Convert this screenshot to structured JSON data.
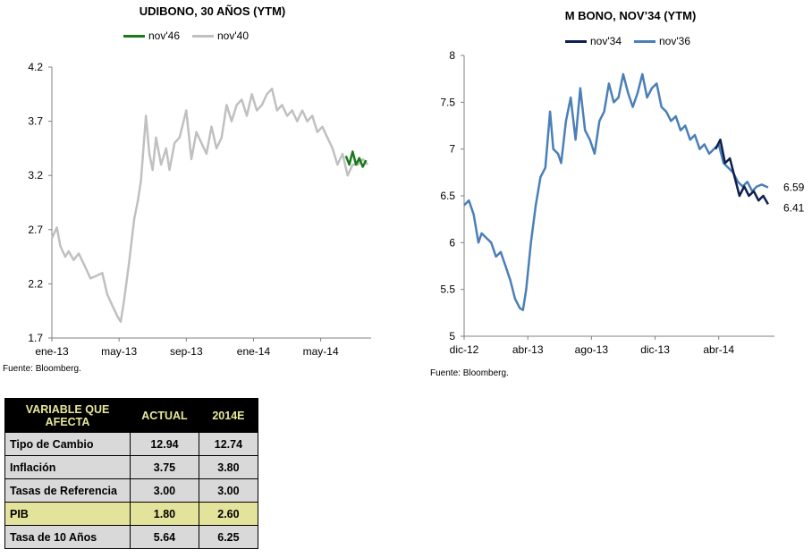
{
  "charts": {
    "left": {
      "title": "UDIBONO, 30 AÑOS (YTM)",
      "source": "Fuente: Bloomberg."
    },
    "right": {
      "title": "M BONO, NOV’34 (YTM)",
      "source": "Fuente: Bloomberg."
    }
  },
  "chart_data": [
    {
      "type": "line",
      "title": "UDIBONO, 30 AÑOS (YTM)",
      "xlabel": "",
      "ylabel": "",
      "ylim": [
        1.7,
        4.2
      ],
      "yticks": [
        1.7,
        2.2,
        2.7,
        3.2,
        3.7,
        4.2
      ],
      "ytick_labels": [
        "1.7",
        "2.2",
        "2.7",
        "3.2",
        "3.7",
        "4.2"
      ],
      "xlim": [
        0,
        19
      ],
      "xticks": [
        0,
        4,
        8,
        12,
        16
      ],
      "xtick_labels": [
        "ene-13",
        "may-13",
        "sep-13",
        "ene-14",
        "may-14"
      ],
      "grid": false,
      "legend_position": "top-center",
      "series": [
        {
          "name": "nov'40",
          "color": "#c0c0c0",
          "x": [
            0,
            0.3,
            0.5,
            0.8,
            1.0,
            1.3,
            1.6,
            2.0,
            2.3,
            2.6,
            3.0,
            3.3,
            3.6,
            3.9,
            4.1,
            4.3,
            4.6,
            4.9,
            5.1,
            5.3,
            5.6,
            5.8,
            6.0,
            6.2,
            6.5,
            6.8,
            7.0,
            7.3,
            7.6,
            8.0,
            8.3,
            8.6,
            8.9,
            9.2,
            9.5,
            9.8,
            10.1,
            10.4,
            10.7,
            11.0,
            11.3,
            11.6,
            11.9,
            12.2,
            12.5,
            12.8,
            13.1,
            13.4,
            13.7,
            14.0,
            14.3,
            14.6,
            14.9,
            15.2,
            15.5,
            15.8,
            16.1,
            16.4,
            16.7,
            17.0,
            17.3,
            17.6,
            17.9,
            18.2,
            18.5,
            18.8
          ],
          "values": [
            2.62,
            2.72,
            2.55,
            2.45,
            2.5,
            2.42,
            2.48,
            2.35,
            2.25,
            2.27,
            2.3,
            2.1,
            2.0,
            1.9,
            1.85,
            2.05,
            2.4,
            2.8,
            2.95,
            3.15,
            3.75,
            3.4,
            3.25,
            3.55,
            3.3,
            3.45,
            3.25,
            3.5,
            3.55,
            3.8,
            3.35,
            3.6,
            3.5,
            3.4,
            3.65,
            3.45,
            3.55,
            3.85,
            3.7,
            3.85,
            3.9,
            3.75,
            3.95,
            3.8,
            3.85,
            3.95,
            4.0,
            3.8,
            3.85,
            3.75,
            3.8,
            3.7,
            3.8,
            3.7,
            3.75,
            3.6,
            3.65,
            3.55,
            3.45,
            3.3,
            3.4,
            3.2,
            3.3,
            3.3,
            3.35,
            3.3
          ]
        },
        {
          "name": "nov'46",
          "color": "#1a7a1a",
          "x": [
            17.5,
            17.7,
            17.9,
            18.1,
            18.3,
            18.5,
            18.7
          ],
          "values": [
            3.38,
            3.3,
            3.42,
            3.3,
            3.36,
            3.28,
            3.34
          ]
        }
      ]
    },
    {
      "type": "line",
      "title": "M BONO, NOV’34 (YTM)",
      "xlabel": "",
      "ylabel": "",
      "ylim": [
        5,
        8
      ],
      "yticks": [
        5,
        5.5,
        6,
        6.5,
        7,
        7.5,
        8
      ],
      "ytick_labels": [
        "5",
        "5.5",
        "6",
        "6.5",
        "7",
        "7.5",
        "8"
      ],
      "xlim": [
        0,
        19.5
      ],
      "xticks": [
        0,
        4,
        8,
        12,
        16
      ],
      "xtick_labels": [
        "dic-12",
        "abr-13",
        "ago-13",
        "dic-13",
        "abr-14"
      ],
      "grid": false,
      "legend_position": "top-center",
      "end_labels": [
        "6.59",
        "6.41"
      ],
      "series": [
        {
          "name": "nov'34",
          "color": "#0d1f4f",
          "x": [
            15.8,
            16.1,
            16.4,
            16.7,
            17.0,
            17.3,
            17.6,
            17.9,
            18.2,
            18.5,
            18.8,
            19.1
          ],
          "values": [
            7.0,
            7.1,
            6.85,
            6.9,
            6.7,
            6.5,
            6.6,
            6.5,
            6.55,
            6.45,
            6.5,
            6.41
          ]
        },
        {
          "name": "nov'36",
          "color": "#4a7fb8",
          "x": [
            0,
            0.3,
            0.6,
            0.9,
            1.1,
            1.4,
            1.7,
            2.0,
            2.3,
            2.6,
            2.9,
            3.2,
            3.5,
            3.7,
            3.9,
            4.2,
            4.5,
            4.8,
            5.1,
            5.4,
            5.6,
            5.9,
            6.1,
            6.4,
            6.7,
            7.0,
            7.3,
            7.6,
            7.9,
            8.2,
            8.5,
            8.8,
            9.1,
            9.4,
            9.7,
            10.0,
            10.3,
            10.6,
            10.9,
            11.2,
            11.5,
            11.8,
            12.1,
            12.4,
            12.7,
            13.0,
            13.3,
            13.6,
            13.9,
            14.2,
            14.5,
            14.8,
            15.1,
            15.4,
            15.7,
            16.0,
            16.3,
            16.6,
            16.9,
            17.2,
            17.5,
            17.8,
            18.1,
            18.4,
            18.7,
            19.1
          ],
          "values": [
            6.4,
            6.45,
            6.3,
            6.0,
            6.1,
            6.05,
            6.0,
            5.85,
            5.9,
            5.75,
            5.6,
            5.4,
            5.3,
            5.28,
            5.5,
            6.0,
            6.4,
            6.7,
            6.8,
            7.4,
            7.0,
            6.95,
            6.85,
            7.3,
            7.55,
            7.1,
            7.65,
            7.2,
            7.1,
            6.95,
            7.3,
            7.4,
            7.7,
            7.5,
            7.55,
            7.8,
            7.6,
            7.45,
            7.6,
            7.8,
            7.55,
            7.65,
            7.7,
            7.45,
            7.4,
            7.3,
            7.35,
            7.2,
            7.25,
            7.1,
            7.15,
            7.0,
            7.05,
            6.95,
            7.0,
            7.05,
            6.85,
            6.8,
            6.75,
            6.65,
            6.6,
            6.65,
            6.55,
            6.6,
            6.62,
            6.59
          ]
        }
      ]
    }
  ],
  "table": {
    "headers": [
      "VARIABLE QUE AFECTA",
      "ACTUAL",
      "2014E"
    ],
    "rows": [
      {
        "label": "Tipo de Cambio",
        "actual": "12.94",
        "estimate": "12.74"
      },
      {
        "label": "Inflación",
        "actual": "3.75",
        "estimate": "3.80"
      },
      {
        "label": "Tasas de Referencia",
        "actual": "3.00",
        "estimate": "3.00"
      },
      {
        "label": "PIB",
        "actual": "1.80",
        "estimate": "2.60"
      },
      {
        "label": "Tasa de 10 Años",
        "actual": "5.64",
        "estimate": "6.25"
      }
    ],
    "colors": {
      "header_bg": "#000000",
      "header_text": "#e8e89a",
      "row_grey": "#d9d9d9",
      "row_highlight": "#e3e39c"
    }
  }
}
